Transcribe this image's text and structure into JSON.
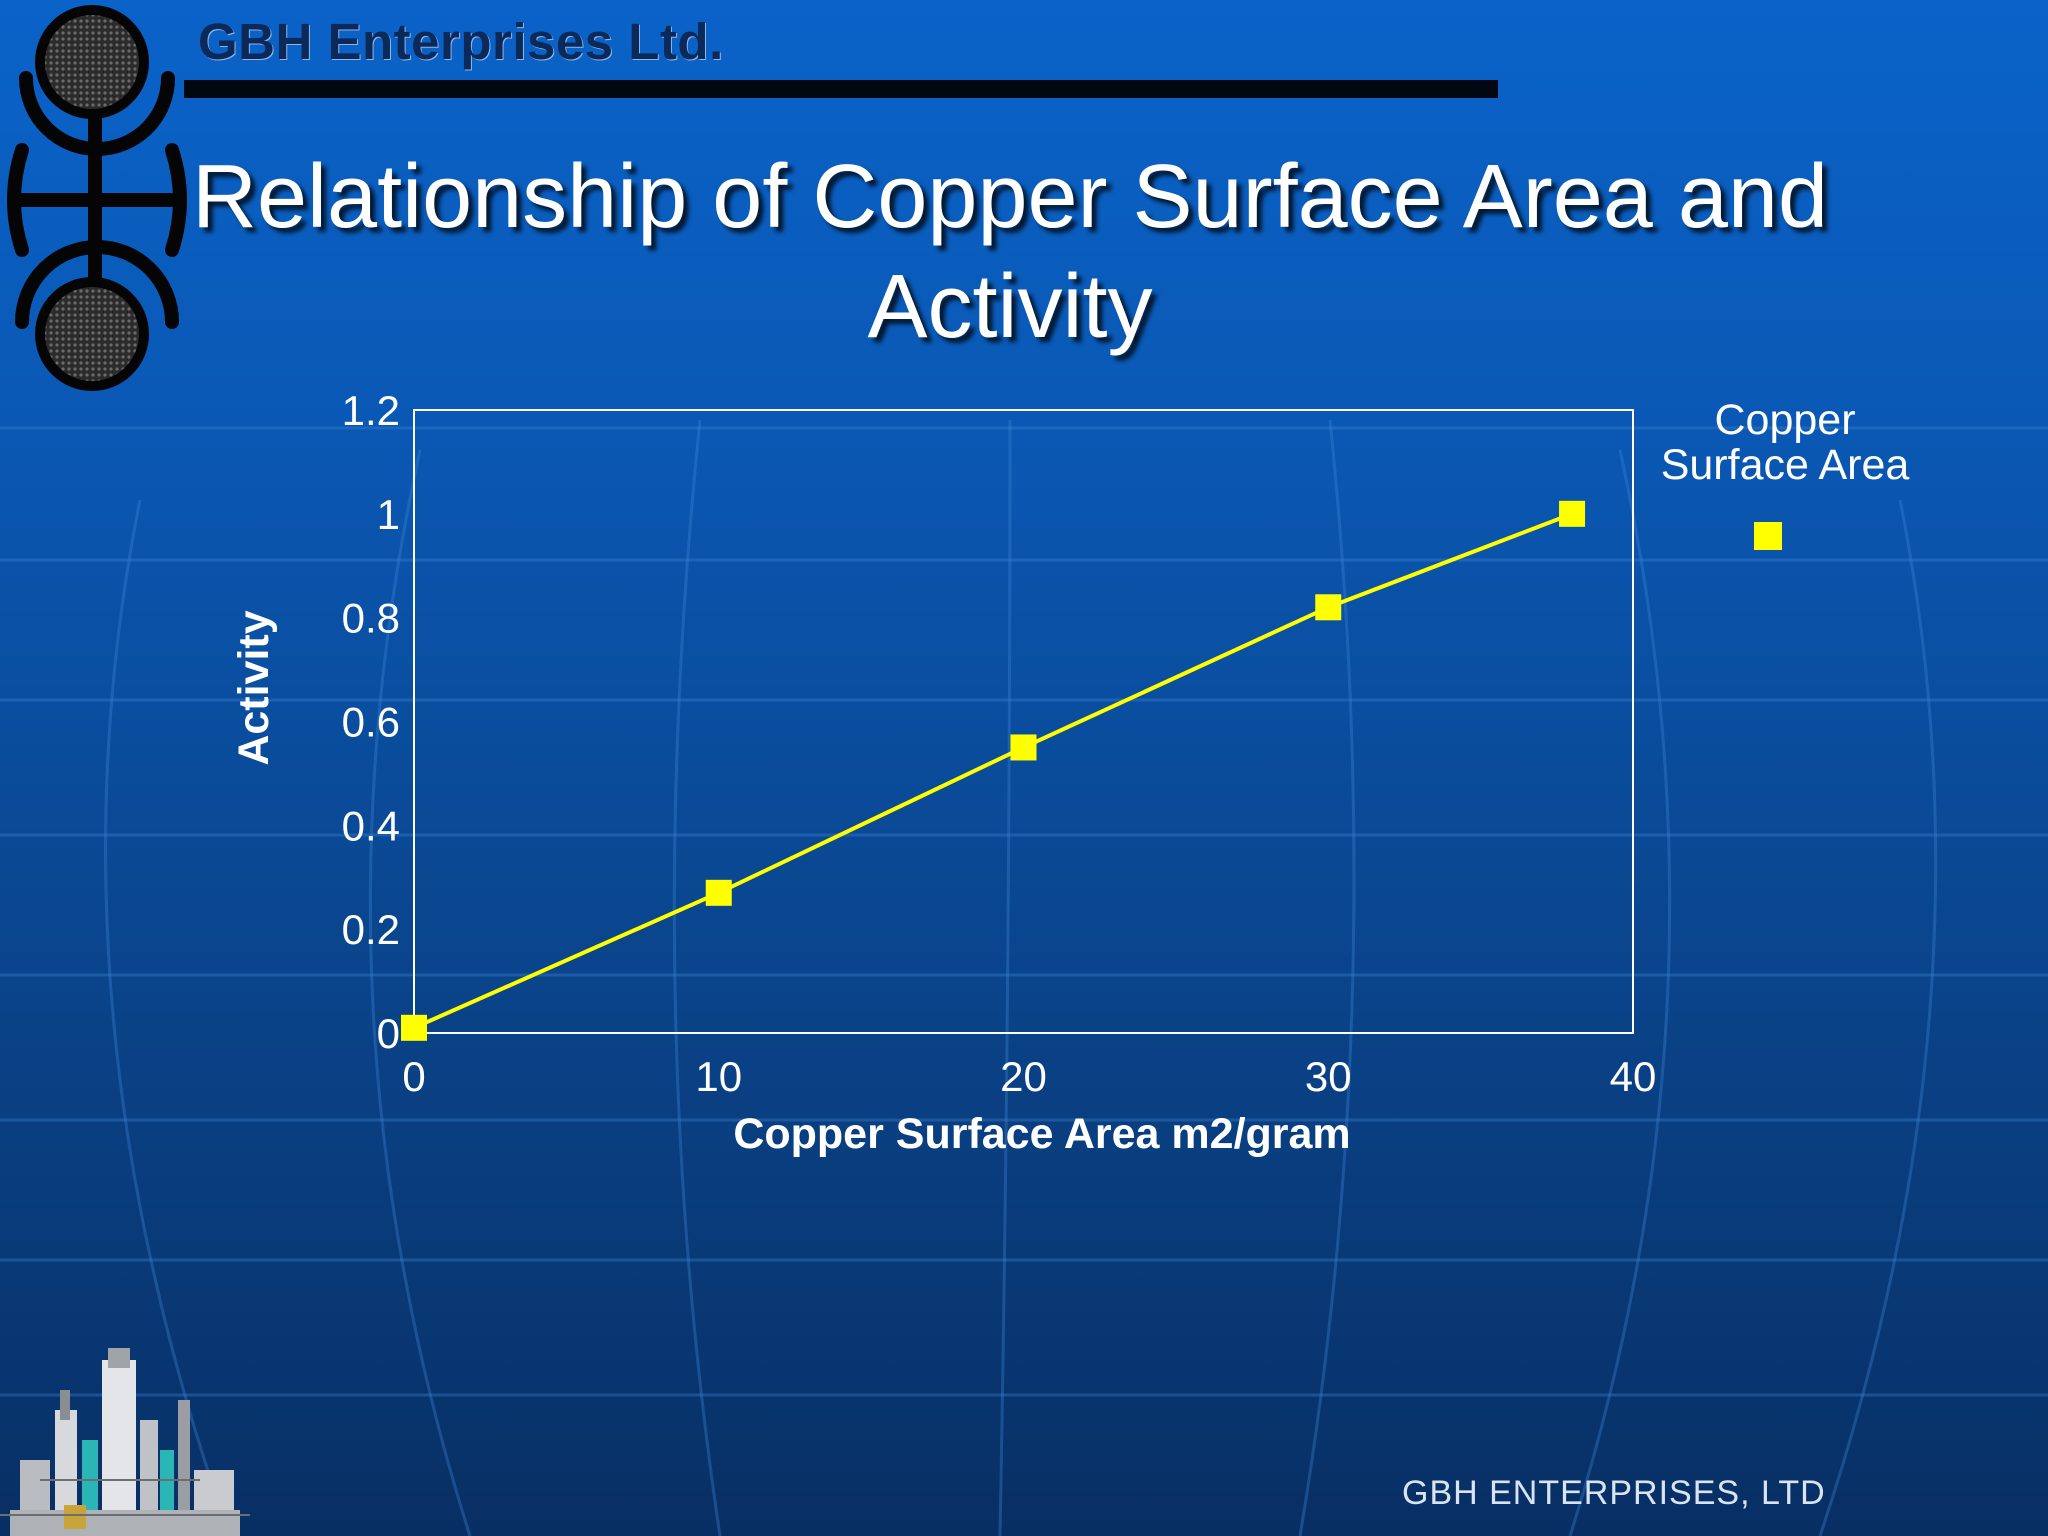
{
  "header": {
    "company": "GBH Enterprises Ltd.",
    "title_line1": "Relationship of Copper Surface Area and",
    "title_line2": "Activity"
  },
  "footer": {
    "company": "GBH ENTERPRISES, LTD"
  },
  "icons": {
    "logo": "gbh-logo-icon",
    "refinery": "refinery-illustration-icon",
    "legend_marker": "yellow-square-marker-icon"
  },
  "colors": {
    "series": "#ffff00",
    "plot_border": "#ffffff",
    "text": "#ffffff",
    "top_rule": "#030712"
  },
  "chart_data": {
    "type": "line",
    "title": "",
    "xlabel": "Copper Surface Area m2/gram",
    "ylabel": "Activity",
    "xlim": [
      0,
      40
    ],
    "ylim": [
      0,
      1.2
    ],
    "xticks": [
      "0",
      "10",
      "20",
      "30",
      "40"
    ],
    "yticks": [
      "0",
      "0.2",
      "0.4",
      "0.6",
      "0.8",
      "1",
      "1.2"
    ],
    "grid": false,
    "legend": "right",
    "series": [
      {
        "name": "Copper Surface Area",
        "marker": "square",
        "x": [
          0,
          10,
          20,
          30,
          38
        ],
        "y": [
          0.01,
          0.27,
          0.55,
          0.82,
          1.0
        ]
      }
    ]
  }
}
